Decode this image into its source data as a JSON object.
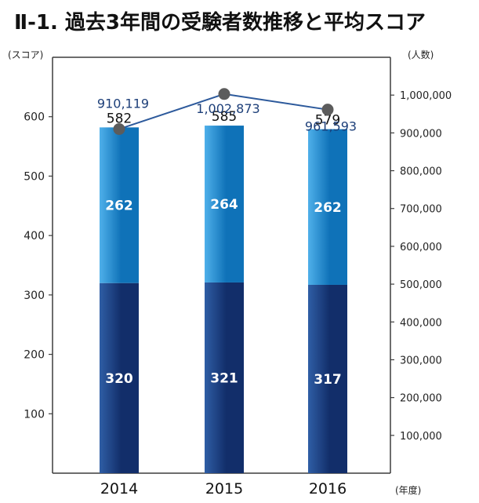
{
  "title": "Ⅱ-1. 過去3年間の受験者数推移と平均スコア",
  "chart_data": {
    "type": "bar",
    "title": "Ⅱ-1. 過去3年間の受験者数推移と平均スコア",
    "categories": [
      "2014",
      "2015",
      "2016"
    ],
    "left_axis": {
      "label": "(スコア)",
      "ylim": [
        0,
        700
      ],
      "tick_labels": [
        "100",
        "200",
        "300",
        "400",
        "500",
        "600"
      ]
    },
    "right_axis": {
      "label": "(人数)",
      "ylim": [
        0,
        1100000
      ],
      "tick_labels": [
        "100,000",
        "200,000",
        "300,000",
        "400,000",
        "500,000",
        "600,000",
        "700,000",
        "800,000",
        "900,000",
        "1,000,000"
      ]
    },
    "x_axis_unit": "(年度)",
    "stacked_bars": {
      "lower_values": [
        320,
        321,
        317
      ],
      "upper_values": [
        262,
        264,
        262
      ],
      "totals": [
        582,
        585,
        579
      ]
    },
    "line_series": {
      "values": [
        910119,
        1002873,
        961593
      ],
      "labels": [
        "910,119",
        "1,002,873",
        "961,593"
      ]
    },
    "colors": {
      "lower_bar_dark": "#122e6a",
      "lower_bar_light": "#2f5ea5",
      "upper_bar_dark": "#0f72b8",
      "upper_bar_light": "#4fb0ea",
      "line": "#2d5a9c",
      "marker": "#5c5c5c",
      "label_blue": "#1d3f79",
      "axis": "#3d3d3d"
    },
    "grid": false
  }
}
